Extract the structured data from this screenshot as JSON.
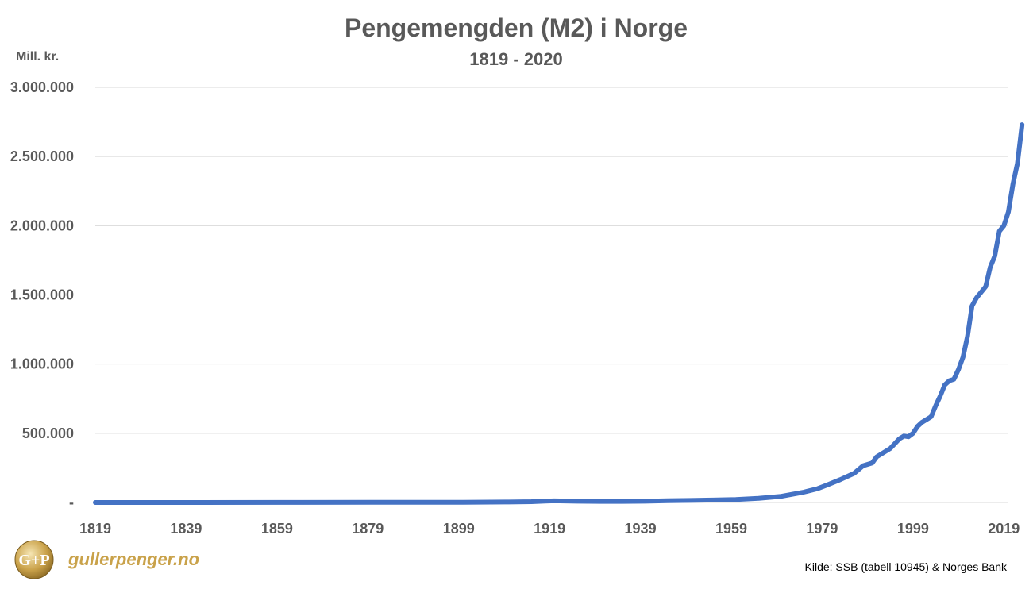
{
  "chart_data": {
    "type": "line",
    "title": "Pengemengden (M2) i Norge",
    "subtitle": "1819 - 2020",
    "ylabel": "Mill. kr.",
    "source": "Kilde: SSB (tabell 10945) & Norges Bank",
    "xlim": [
      1819,
      2020
    ],
    "ylim": [
      0,
      3000000
    ],
    "x_ticks": [
      1819,
      1839,
      1859,
      1879,
      1899,
      1919,
      1939,
      1959,
      1979,
      1999,
      2019
    ],
    "y_ticks": [
      {
        "value": 0,
        "label": "-"
      },
      {
        "value": 500000,
        "label": "500.000"
      },
      {
        "value": 1000000,
        "label": "1.000.000"
      },
      {
        "value": 1500000,
        "label": "1.500.000"
      },
      {
        "value": 2000000,
        "label": "2.000.000"
      },
      {
        "value": 2500000,
        "label": "2.500.000"
      },
      {
        "value": 3000000,
        "label": "3.000.000"
      }
    ],
    "grid": true,
    "line_color": "#4472c4",
    "series": [
      {
        "points": [
          [
            1819,
            50
          ],
          [
            1840,
            150
          ],
          [
            1860,
            400
          ],
          [
            1880,
            900
          ],
          [
            1900,
            2000
          ],
          [
            1910,
            3500
          ],
          [
            1915,
            6000
          ],
          [
            1918,
            10000
          ],
          [
            1920,
            12000
          ],
          [
            1925,
            9000
          ],
          [
            1930,
            8000
          ],
          [
            1935,
            8000
          ],
          [
            1940,
            9000
          ],
          [
            1945,
            13000
          ],
          [
            1950,
            15000
          ],
          [
            1955,
            18000
          ],
          [
            1960,
            22000
          ],
          [
            1965,
            30000
          ],
          [
            1970,
            45000
          ],
          [
            1975,
            75000
          ],
          [
            1978,
            100000
          ],
          [
            1980,
            125000
          ],
          [
            1983,
            165000
          ],
          [
            1986,
            210000
          ],
          [
            1988,
            265000
          ],
          [
            1990,
            285000
          ],
          [
            1991,
            330000
          ],
          [
            1993,
            370000
          ],
          [
            1994,
            390000
          ],
          [
            1996,
            460000
          ],
          [
            1997,
            480000
          ],
          [
            1998,
            475000
          ],
          [
            1999,
            500000
          ],
          [
            2000,
            550000
          ],
          [
            2001,
            580000
          ],
          [
            2003,
            620000
          ],
          [
            2004,
            700000
          ],
          [
            2005,
            770000
          ],
          [
            2006,
            850000
          ],
          [
            2007,
            880000
          ],
          [
            2008,
            890000
          ],
          [
            2009,
            960000
          ],
          [
            2010,
            1050000
          ],
          [
            2011,
            1200000
          ],
          [
            2012,
            1420000
          ],
          [
            2013,
            1480000
          ],
          [
            2014,
            1520000
          ],
          [
            2015,
            1560000
          ],
          [
            2016,
            1700000
          ],
          [
            2017,
            1780000
          ],
          [
            2018,
            1960000
          ],
          [
            2019,
            2000000
          ],
          [
            2020,
            2100000
          ],
          [
            2021,
            2300000
          ],
          [
            2022,
            2450000
          ],
          [
            2023,
            2730000
          ]
        ]
      }
    ]
  },
  "brand": {
    "logo_text": "G+P",
    "name": "gullerpenger.no"
  }
}
